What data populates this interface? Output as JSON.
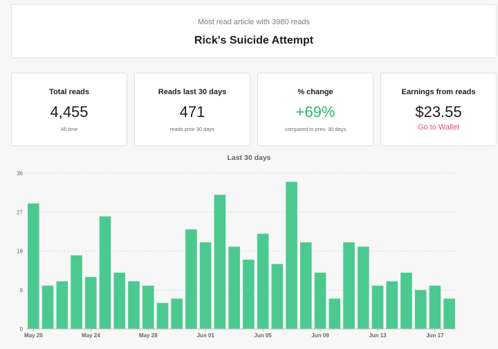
{
  "top": {
    "subtitle": "Most read article with 3980 reads",
    "title": "Rick's Suicide Attempt"
  },
  "stats": [
    {
      "label": "Total reads",
      "value": "4,455",
      "note": "All time"
    },
    {
      "label": "Reads last 30 days",
      "value": "471",
      "note": "reads prior 30 days"
    },
    {
      "label": "% change",
      "value": "+69%",
      "note": "compared to prev. 30 days"
    },
    {
      "label": "Earnings from reads",
      "value": "$23.55",
      "link": "Go to Wallet"
    }
  ],
  "colors": {
    "bar": "#4cc990",
    "positive": "#21bd6e",
    "link": "#f04d73"
  },
  "chart_data": {
    "type": "bar",
    "title": "Last 30 days",
    "categories": [
      "May 20",
      "May 21",
      "May 22",
      "May 23",
      "May 24",
      "May 25",
      "May 26",
      "May 27",
      "May 28",
      "May 29",
      "May 30",
      "May 31",
      "Jun 01",
      "Jun 02",
      "Jun 03",
      "Jun 04",
      "Jun 05",
      "Jun 06",
      "Jun 07",
      "Jun 08",
      "Jun 09",
      "Jun 10",
      "Jun 11",
      "Jun 12",
      "Jun 13",
      "Jun 14",
      "Jun 15",
      "Jun 16",
      "Jun 17",
      "Jun 18"
    ],
    "values": [
      29,
      10,
      11,
      17,
      12,
      26,
      13,
      11,
      10,
      6,
      7,
      23,
      20,
      31,
      19,
      16,
      22,
      15,
      34,
      20,
      13,
      7,
      20,
      19,
      10,
      11,
      13,
      9,
      10,
      7
    ],
    "tick_labels": [
      "May 20",
      "May 24",
      "May 28",
      "Jun 01",
      "Jun 05",
      "Jun 09",
      "Jun 13",
      "Jun 17"
    ],
    "tick_indices": [
      0,
      4,
      8,
      12,
      16,
      20,
      24,
      28
    ],
    "yticks": [
      0,
      9,
      18,
      27,
      36
    ],
    "ylim": [
      0,
      36
    ],
    "grid": true
  }
}
